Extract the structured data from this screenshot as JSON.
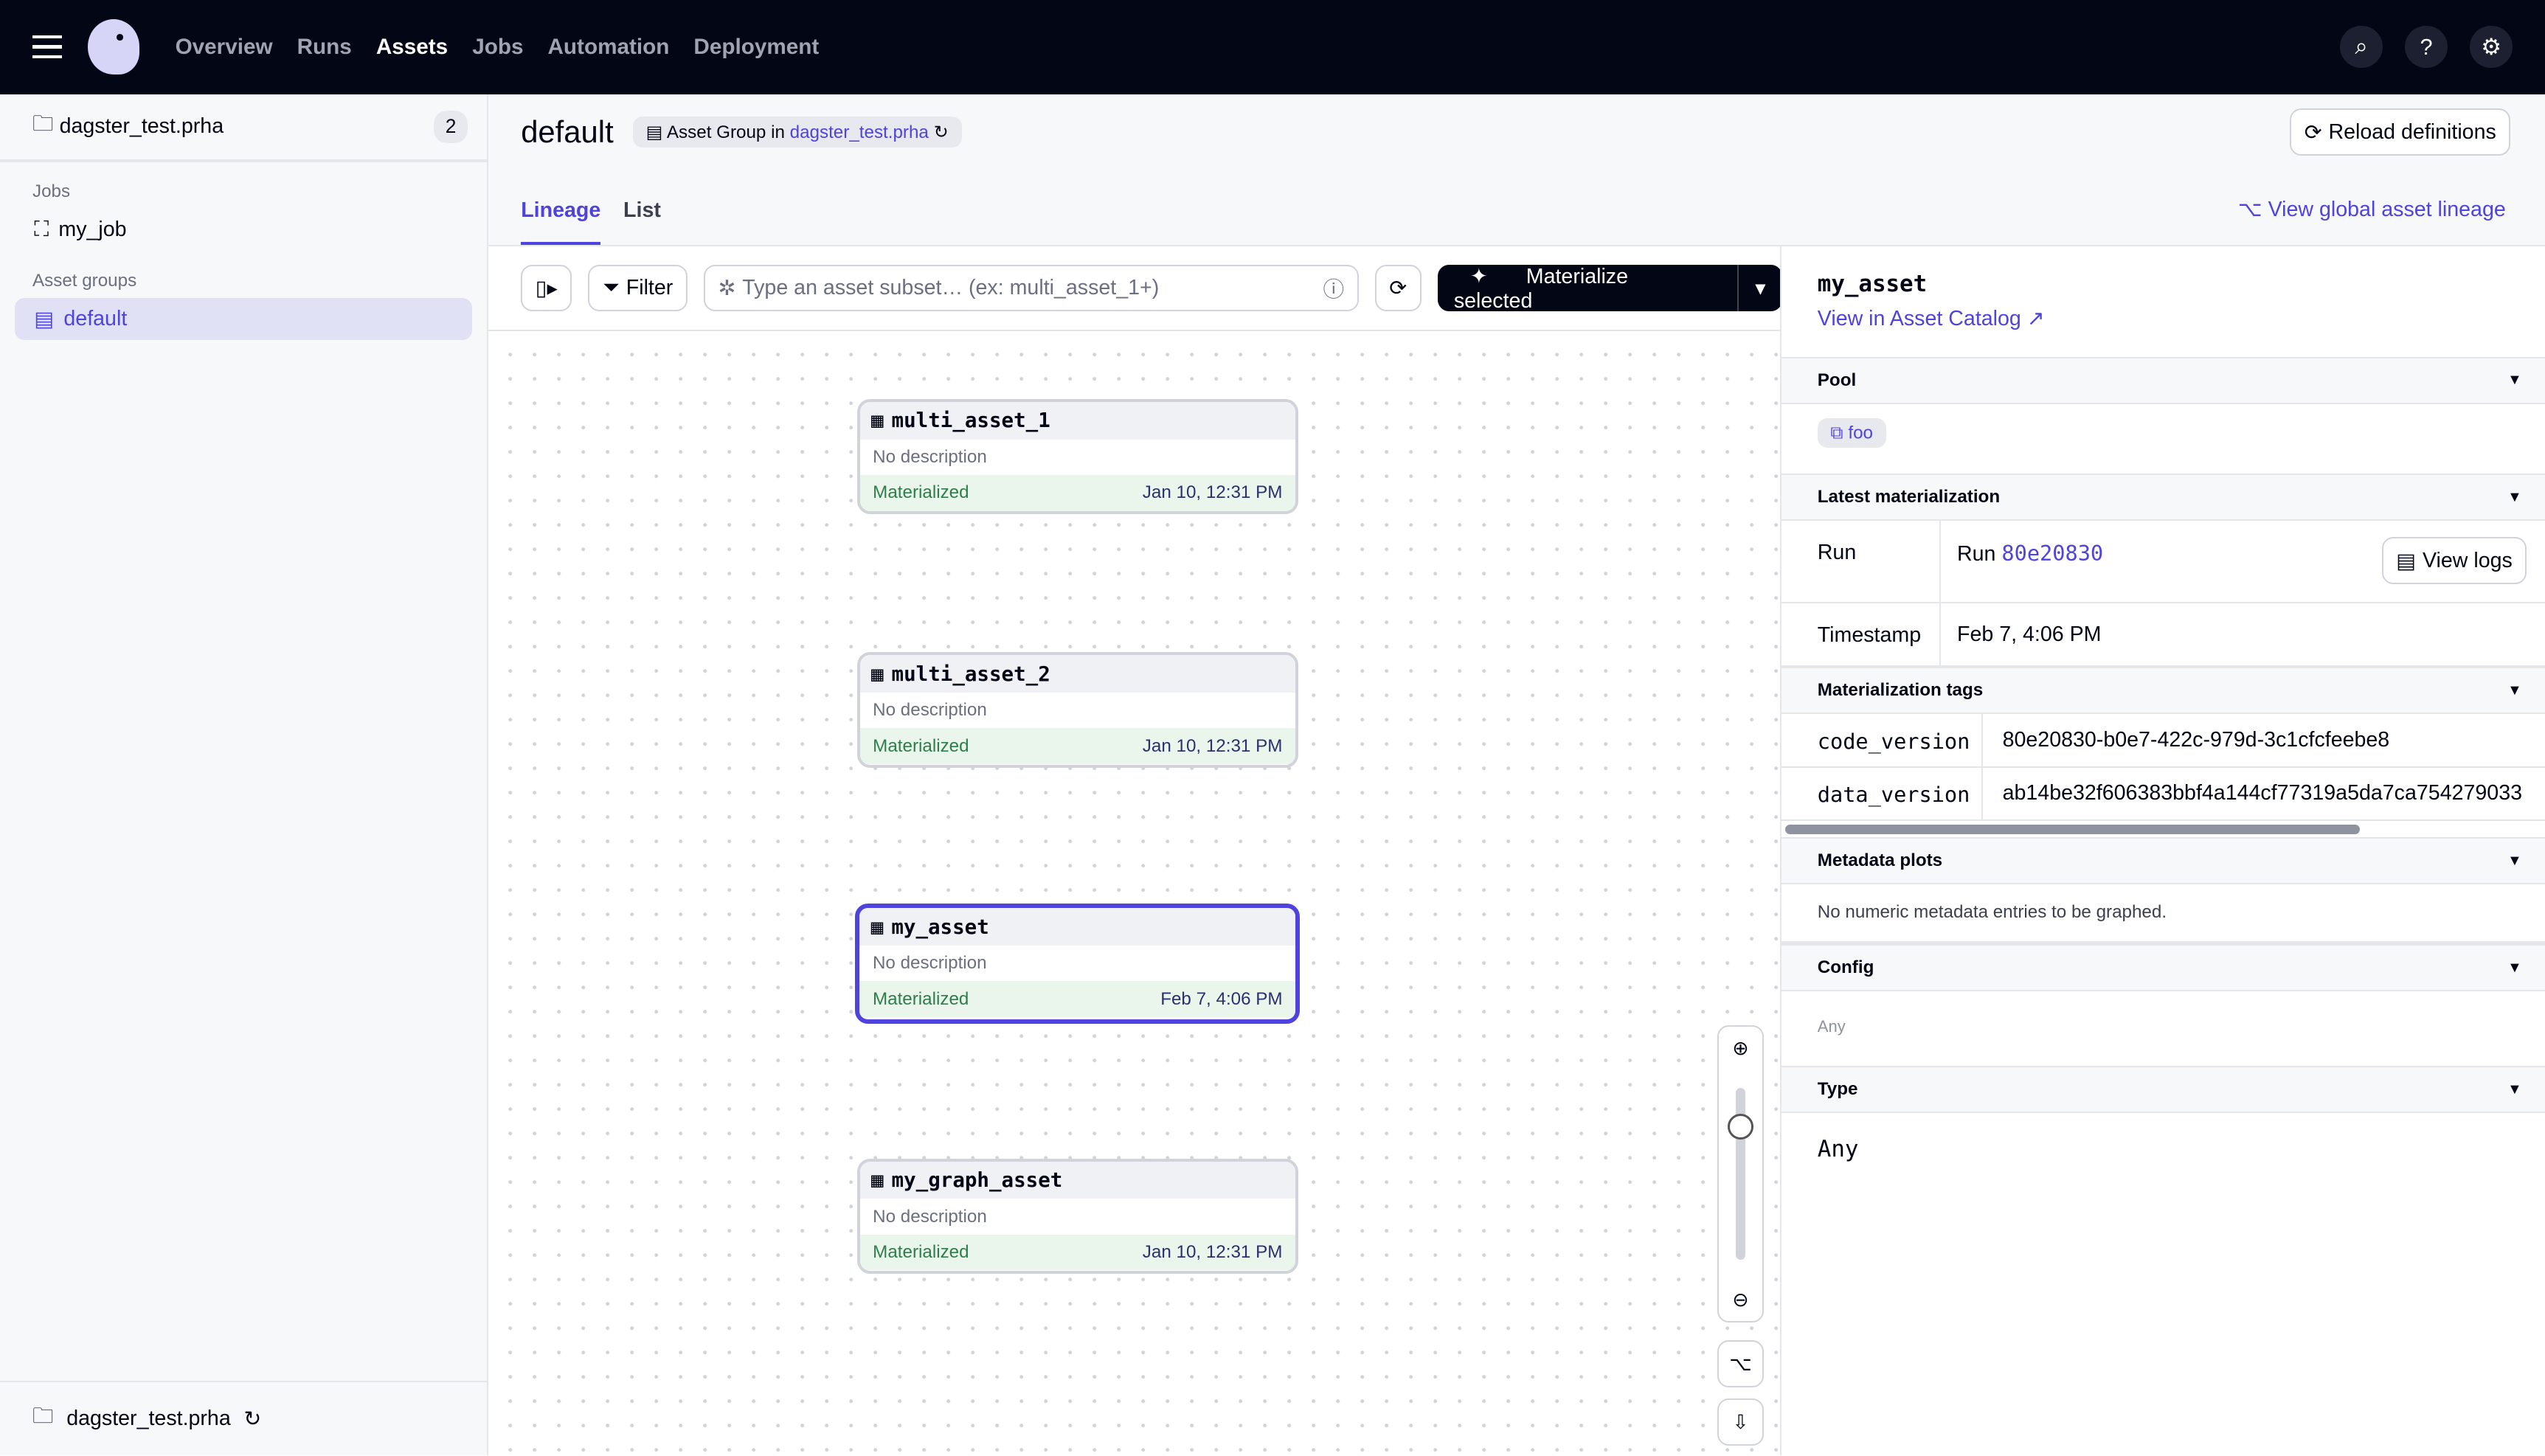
{
  "topnav": {
    "items": [
      "Overview",
      "Runs",
      "Assets",
      "Jobs",
      "Automation",
      "Deployment"
    ],
    "active": "Assets"
  },
  "sidebar": {
    "location": "dagster_test.prha",
    "count": "2",
    "jobs_label": "Jobs",
    "jobs": [
      "my_job"
    ],
    "groups_label": "Asset groups",
    "groups": [
      "default"
    ],
    "footer": "dagster_test.prha"
  },
  "header": {
    "title": "default",
    "group_prefix": "Asset Group in",
    "group_location": "dagster_test.prha",
    "reload": "Reload definitions"
  },
  "tabs": [
    "Lineage",
    "List"
  ],
  "global_lineage": "View global asset lineage",
  "toolbar": {
    "filter": "Filter",
    "placeholder": "Type an asset subset… (ex: multi_asset_1+)",
    "materialize": "Materialize selected"
  },
  "nodes": [
    {
      "name": "multi_asset_1",
      "desc": "No description",
      "status": "Materialized",
      "time": "Jan 10, 12:31 PM"
    },
    {
      "name": "multi_asset_2",
      "desc": "No description",
      "status": "Materialized",
      "time": "Jan 10, 12:31 PM"
    },
    {
      "name": "my_asset",
      "desc": "No description",
      "status": "Materialized",
      "time": "Feb 7, 4:06 PM",
      "selected": true
    },
    {
      "name": "my_graph_asset",
      "desc": "No description",
      "status": "Materialized",
      "time": "Jan 10, 12:31 PM"
    }
  ],
  "zoom_level": 0.85,
  "panel": {
    "asset": "my_asset",
    "catalog_link": "View in Asset Catalog",
    "pool_title": "Pool",
    "pool": "foo",
    "latest_title": "Latest materialization",
    "run_label": "Run",
    "run_prefix": "Run",
    "run_id": "80e20830",
    "view_logs": "View logs",
    "ts_label": "Timestamp",
    "ts": "Feb 7, 4:06 PM",
    "tags_title": "Materialization tags",
    "tags": [
      {
        "k": "code_version",
        "v": "80e20830-b0e7-422c-979d-3c1cfcfeebe8"
      },
      {
        "k": "data_version",
        "v": "ab14be32f606383bbf4a144cf77319a5da7ca754279033"
      }
    ],
    "plots_title": "Metadata plots",
    "plots_text": "No numeric metadata entries to be graphed.",
    "config_title": "Config",
    "config": "Any",
    "type_title": "Type",
    "type": "Any"
  },
  "colors": {
    "accent": "#4f43dd",
    "topbar": "#030615",
    "success": "#2e7d4a"
  }
}
